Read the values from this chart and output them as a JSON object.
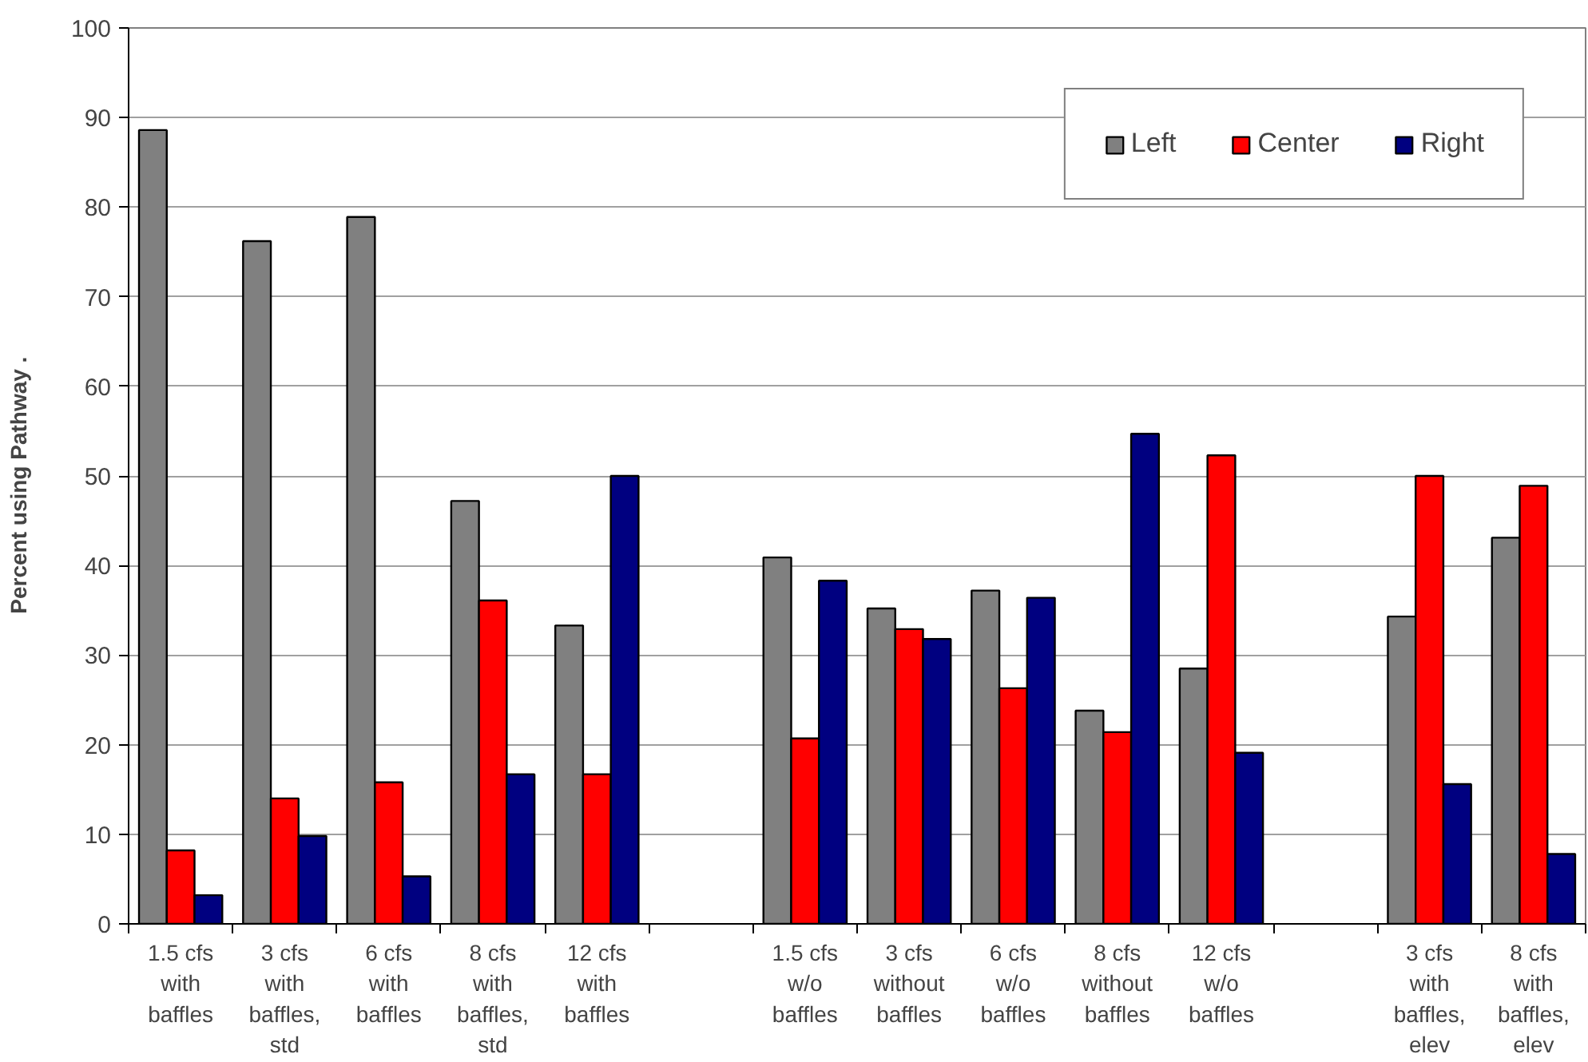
{
  "chart_data": {
    "type": "bar",
    "ylabel": "Percent using Pathway    .",
    "categories": [
      "1.5 cfs with baffles",
      "3 cfs with baffles, std",
      "6 cfs with baffles",
      "8 cfs with baffles, std",
      "12 cfs with baffles",
      null,
      "1.5 cfs w/o baffles",
      "3 cfs without baffles",
      "6 cfs w/o baffles",
      "8 cfs without baffles",
      "12 cfs w/o baffles",
      null,
      "3 cfs with baffles, elev",
      "8 cfs with baffles, elev"
    ],
    "series": [
      {
        "name": "Left",
        "color": "#808080",
        "values": [
          88.6,
          76.2,
          78.9,
          47.2,
          33.3,
          null,
          40.9,
          35.2,
          37.2,
          23.8,
          28.5,
          null,
          34.3,
          43.1
        ]
      },
      {
        "name": "Center",
        "color": "#ff0000",
        "values": [
          8.2,
          14.0,
          15.8,
          36.1,
          16.7,
          null,
          20.7,
          32.9,
          26.3,
          21.4,
          52.3,
          null,
          50.0,
          48.9
        ]
      },
      {
        "name": "Right",
        "color": "#000080",
        "values": [
          3.2,
          9.8,
          5.3,
          16.7,
          50.0,
          null,
          38.3,
          31.8,
          36.4,
          54.7,
          19.1,
          null,
          15.6,
          7.8
        ]
      }
    ],
    "ylim": [
      0,
      100
    ],
    "yticks": [
      0,
      10,
      20,
      30,
      40,
      50,
      60,
      70,
      80,
      90,
      100
    ],
    "grid": "y",
    "legend": "top right"
  }
}
